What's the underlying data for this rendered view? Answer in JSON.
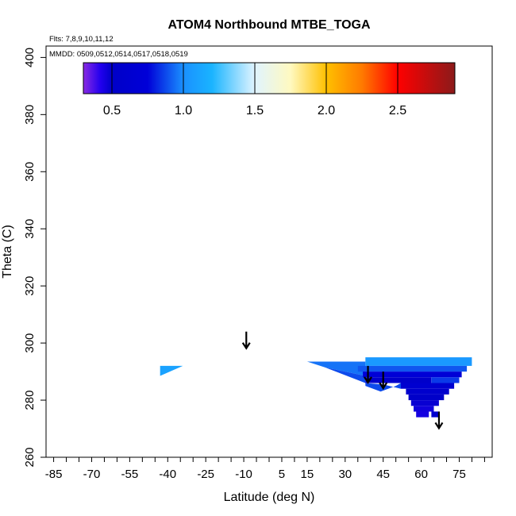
{
  "chart_data": {
    "type": "heatmap",
    "title": "ATOM4 Northbound MTBE_TOGA",
    "flights_note": "Flts: 7,8,9,10,11,12",
    "dates_note": "MMDD: 0509,0512,0514,0517,0518,0519",
    "xlabel": "Latitude (deg N)",
    "ylabel": "Theta (C)",
    "xlim": [
      -88,
      88
    ],
    "ylim": [
      260,
      404
    ],
    "x_tick_labels": [
      "-85",
      "-70",
      "-55",
      "-40",
      "-25",
      "-10",
      "5",
      "15",
      "30",
      "45",
      "60",
      "75"
    ],
    "x_tick_values": [
      -85,
      -70,
      -55,
      -40,
      -25,
      -10,
      5,
      15,
      30,
      45,
      60,
      75
    ],
    "x_minor_step": 5,
    "y_tick_labels": [
      "260",
      "280",
      "300",
      "320",
      "340",
      "360",
      "380",
      "400"
    ],
    "y_tick_values": [
      260,
      280,
      300,
      320,
      340,
      360,
      380,
      400
    ],
    "colorbar": {
      "min": 0.3,
      "max": 2.9,
      "tick_values": [
        0.5,
        1.0,
        1.5,
        2.0,
        2.5
      ],
      "tick_labels": [
        "0.5",
        "1.0",
        "1.5",
        "2.0",
        "2.5"
      ],
      "stops": [
        {
          "value": 0.3,
          "color": "#8a2be2"
        },
        {
          "value": 0.42,
          "color": "#2200ee"
        },
        {
          "value": 0.5,
          "color": "#0000c8"
        },
        {
          "value": 0.75,
          "color": "#0000d8"
        },
        {
          "value": 1.0,
          "color": "#1a90ff"
        },
        {
          "value": 1.2,
          "color": "#1ab4ff"
        },
        {
          "value": 1.5,
          "color": "#e0f4ff"
        },
        {
          "value": 1.75,
          "color": "#fff9c0"
        },
        {
          "value": 2.0,
          "color": "#ffc000"
        },
        {
          "value": 2.25,
          "color": "#ff7a00"
        },
        {
          "value": 2.5,
          "color": "#ff0000"
        },
        {
          "value": 2.9,
          "color": "#8b1a1a"
        }
      ]
    },
    "cells": [
      {
        "lat0": 38,
        "lat1": 80,
        "th0": 292,
        "th1": 295,
        "value": 1.05
      },
      {
        "lat0": 35,
        "lat1": 78,
        "th0": 290,
        "th1": 292,
        "value": 0.9
      },
      {
        "lat0": 37,
        "lat1": 76,
        "th0": 288,
        "th1": 290,
        "value": 0.72
      },
      {
        "lat0": 38,
        "lat1": 64,
        "th0": 286,
        "th1": 288,
        "value": 0.55
      },
      {
        "lat0": 64,
        "lat1": 75,
        "th0": 286,
        "th1": 288,
        "value": 0.85
      },
      {
        "lat0": 52,
        "lat1": 73,
        "th0": 284,
        "th1": 286,
        "value": 0.62
      },
      {
        "lat0": 54,
        "lat1": 71,
        "th0": 282,
        "th1": 284,
        "value": 0.58
      },
      {
        "lat0": 55,
        "lat1": 69,
        "th0": 280,
        "th1": 282,
        "value": 0.52
      },
      {
        "lat0": 56,
        "lat1": 67,
        "th0": 278,
        "th1": 280,
        "value": 0.48
      },
      {
        "lat0": 57,
        "lat1": 65,
        "th0": 276,
        "th1": 278,
        "value": 0.46
      },
      {
        "lat0": 58,
        "lat1": 63,
        "th0": 274,
        "th1": 276,
        "value": 0.45
      },
      {
        "lat0": 64,
        "lat1": 67,
        "th0": 274,
        "th1": 276,
        "value": 0.6
      }
    ],
    "polygons": [
      {
        "name": "tongue-upper",
        "value": 0.95,
        "points": [
          [
            15,
            293.5
          ],
          [
            38,
            293.5
          ],
          [
            38,
            288.5
          ],
          [
            22,
            291.5
          ]
        ]
      },
      {
        "name": "tongue-lower",
        "value": 0.88,
        "points": [
          [
            22,
            291.5
          ],
          [
            38,
            288.5
          ],
          [
            38,
            285
          ],
          [
            44,
            283
          ],
          [
            50,
            285
          ],
          [
            52,
            286
          ],
          [
            52,
            284
          ],
          [
            45,
            285.5
          ],
          [
            38,
            286
          ]
        ]
      },
      {
        "name": "isolated-patch",
        "value": 1.1,
        "points": [
          [
            -43,
            288.5
          ],
          [
            -34,
            292
          ],
          [
            -43,
            292
          ]
        ]
      }
    ],
    "arrows": [
      {
        "lat": -9,
        "theta": 304
      },
      {
        "lat": 39,
        "theta": 292
      },
      {
        "lat": 45,
        "theta": 290
      },
      {
        "lat": 67,
        "theta": 276
      }
    ]
  }
}
